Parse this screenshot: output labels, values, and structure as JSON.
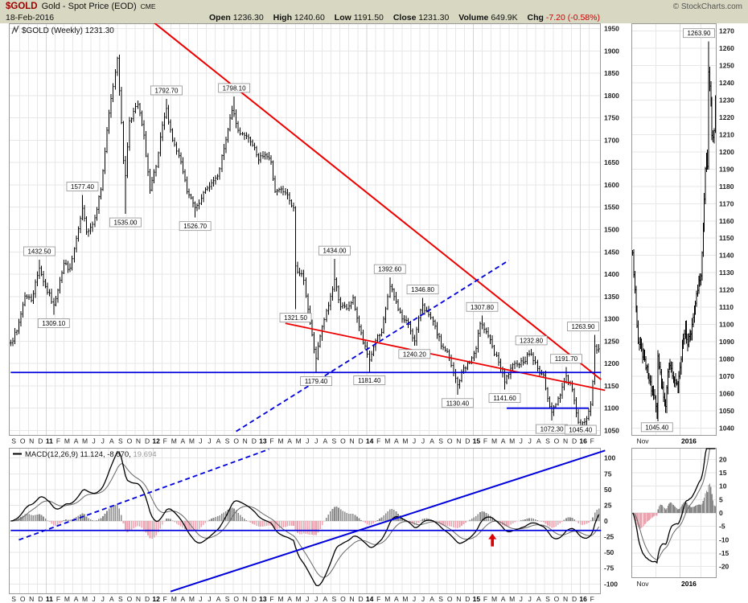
{
  "header": {
    "symbol": "$GOLD",
    "title": "Gold - Spot Price (EOD)",
    "exchange": "CME",
    "copyright": "© StockCharts.com",
    "date": "18-Feb-2016",
    "quote": {
      "open_label": "Open",
      "open": "1236.30",
      "high_label": "High",
      "high": "1240.60",
      "low_label": "Low",
      "low": "1191.50",
      "close_label": "Close",
      "close": "1231.30",
      "volume_label": "Volume",
      "volume": "649.9K",
      "chg_label": "Chg",
      "chg": "-7.20 (-0.58%)"
    }
  },
  "colors": {
    "header_bg": "#d8d8c2",
    "symbol": "#990000",
    "chg_negative": "#cc0000",
    "panel_border": "#999999",
    "grid": "#e7e7e7",
    "grid_major": "#d4d4d4",
    "axis_text": "#222222",
    "bar": "#000000",
    "trend_red": "#ee0000",
    "trend_blue": "#0000dd",
    "hist_pos": "#888888",
    "hist_neg": "#eba3af",
    "macd_line": "#000000",
    "signal_line": "#666666",
    "arrow_red": "#dd0000",
    "label_box_border": "#909090"
  },
  "chart_data": {
    "type": "ohlc",
    "symbol": "$GOLD",
    "main": {
      "title": "$GOLD (Weekly) 1231.30",
      "timeframe": "weekly",
      "weeks": 288,
      "ylim": [
        1040,
        1960
      ],
      "y_ticks": [
        1950,
        1900,
        1850,
        1800,
        1750,
        1700,
        1650,
        1600,
        1550,
        1500,
        1450,
        1400,
        1350,
        1300,
        1250,
        1200,
        1150,
        1100,
        1050
      ],
      "x_labels": [
        "S",
        "O",
        "N",
        "D",
        "11",
        "F",
        "M",
        "A",
        "M",
        "J",
        "J",
        "A",
        "S",
        "O",
        "N",
        "D",
        "12",
        "F",
        "M",
        "A",
        "M",
        "J",
        "J",
        "A",
        "S",
        "O",
        "N",
        "D",
        "13",
        "F",
        "M",
        "A",
        "M",
        "J",
        "J",
        "A",
        "S",
        "O",
        "N",
        "D",
        "14",
        "F",
        "M",
        "A",
        "M",
        "J",
        "J",
        "A",
        "S",
        "O",
        "N",
        "D",
        "15",
        "F",
        "M",
        "A",
        "M",
        "J",
        "J",
        "A",
        "S",
        "O",
        "N",
        "D",
        "16",
        "F"
      ],
      "close_keypoints": [
        [
          0,
          1248
        ],
        [
          3,
          1272
        ],
        [
          7,
          1352
        ],
        [
          10,
          1342
        ],
        [
          14,
          1415
        ],
        [
          17,
          1372
        ],
        [
          21,
          1330
        ],
        [
          24,
          1388
        ],
        [
          26,
          1424
        ],
        [
          29,
          1412
        ],
        [
          33,
          1500
        ],
        [
          35,
          1546
        ],
        [
          37,
          1496
        ],
        [
          40,
          1512
        ],
        [
          44,
          1590
        ],
        [
          48,
          1760
        ],
        [
          52,
          1885
        ],
        [
          53,
          1812
        ],
        [
          55,
          1655
        ],
        [
          56,
          1622
        ],
        [
          58,
          1744
        ],
        [
          62,
          1780
        ],
        [
          65,
          1710
        ],
        [
          68,
          1588
        ],
        [
          71,
          1640
        ],
        [
          74,
          1732
        ],
        [
          76,
          1770
        ],
        [
          79,
          1700
        ],
        [
          83,
          1650
        ],
        [
          86,
          1585
        ],
        [
          90,
          1550
        ],
        [
          93,
          1572
        ],
        [
          97,
          1598
        ],
        [
          101,
          1618
        ],
        [
          105,
          1700
        ],
        [
          108,
          1768
        ],
        [
          111,
          1722
        ],
        [
          114,
          1712
        ],
        [
          118,
          1688
        ],
        [
          121,
          1655
        ],
        [
          124,
          1668
        ],
        [
          127,
          1650
        ],
        [
          129,
          1585
        ],
        [
          132,
          1592
        ],
        [
          135,
          1578
        ],
        [
          138,
          1550
        ],
        [
          139,
          1420
        ],
        [
          141,
          1400
        ],
        [
          143,
          1388
        ],
        [
          146,
          1290
        ],
        [
          148,
          1232
        ],
        [
          149,
          1212
        ],
        [
          152,
          1282
        ],
        [
          155,
          1330
        ],
        [
          158,
          1388
        ],
        [
          161,
          1328
        ],
        [
          164,
          1322
        ],
        [
          167,
          1346
        ],
        [
          170,
          1282
        ],
        [
          172,
          1246
        ],
        [
          175,
          1208
        ],
        [
          178,
          1252
        ],
        [
          181,
          1268
        ],
        [
          184,
          1350
        ],
        [
          185,
          1372
        ],
        [
          188,
          1338
        ],
        [
          191,
          1300
        ],
        [
          194,
          1288
        ],
        [
          197,
          1250
        ],
        [
          200,
          1320
        ],
        [
          201,
          1332
        ],
        [
          204,
          1308
        ],
        [
          207,
          1282
        ],
        [
          210,
          1240
        ],
        [
          213,
          1226
        ],
        [
          216,
          1178
        ],
        [
          218,
          1152
        ],
        [
          221,
          1190
        ],
        [
          224,
          1202
        ],
        [
          227,
          1232
        ],
        [
          229,
          1290
        ],
        [
          230,
          1288
        ],
        [
          233,
          1262
        ],
        [
          236,
          1220
        ],
        [
          238,
          1204
        ],
        [
          241,
          1158
        ],
        [
          244,
          1188
        ],
        [
          247,
          1200
        ],
        [
          250,
          1204
        ],
        [
          253,
          1222
        ],
        [
          254,
          1220
        ],
        [
          257,
          1188
        ],
        [
          260,
          1172
        ],
        [
          263,
          1104
        ],
        [
          264,
          1090
        ],
        [
          267,
          1122
        ],
        [
          270,
          1160
        ],
        [
          271,
          1172
        ],
        [
          274,
          1142
        ],
        [
          276,
          1088
        ],
        [
          278,
          1062
        ],
        [
          280,
          1068
        ],
        [
          282,
          1092
        ],
        [
          283,
          1108
        ],
        [
          284,
          1160
        ],
        [
          285,
          1240
        ],
        [
          286,
          1232
        ],
        [
          287,
          1231
        ]
      ],
      "price_labels": [
        {
          "week": 14,
          "price": 1432.5,
          "text": "1432.50",
          "kind": "high"
        },
        {
          "week": 21,
          "price": 1309.1,
          "text": "1309.10",
          "kind": "low"
        },
        {
          "week": 35,
          "price": 1577.4,
          "text": "1577.40",
          "kind": "high"
        },
        {
          "week": 56,
          "price": 1535.0,
          "text": "1535.00",
          "kind": "low"
        },
        {
          "week": 76,
          "price": 1792.7,
          "text": "1792.70",
          "kind": "high"
        },
        {
          "week": 90,
          "price": 1526.7,
          "text": "1526.70",
          "kind": "low"
        },
        {
          "week": 109,
          "price": 1798.1,
          "text": "1798.10",
          "kind": "high"
        },
        {
          "week": 139,
          "price": 1321.5,
          "text": "1321.50",
          "kind": "low"
        },
        {
          "week": 149,
          "price": 1179.4,
          "text": "1179.40",
          "kind": "low"
        },
        {
          "week": 158,
          "price": 1434.0,
          "text": "1434.00",
          "kind": "high"
        },
        {
          "week": 175,
          "price": 1181.4,
          "text": "1181.40",
          "kind": "low"
        },
        {
          "week": 185,
          "price": 1392.6,
          "text": "1392.60",
          "kind": "high"
        },
        {
          "week": 197,
          "price": 1240.2,
          "text": "1240.20",
          "kind": "low"
        },
        {
          "week": 201,
          "price": 1346.8,
          "text": "1346.80",
          "kind": "high"
        },
        {
          "week": 218,
          "price": 1130.4,
          "text": "1130.40",
          "kind": "low"
        },
        {
          "week": 230,
          "price": 1307.8,
          "text": "1307.80",
          "kind": "high"
        },
        {
          "week": 241,
          "price": 1141.6,
          "text": "1141.60",
          "kind": "low"
        },
        {
          "week": 254,
          "price": 1232.8,
          "text": "1232.80",
          "kind": "high"
        },
        {
          "week": 264,
          "price": 1072.3,
          "text": "1072.30",
          "kind": "low"
        },
        {
          "week": 271,
          "price": 1191.7,
          "text": "1191.70",
          "kind": "high"
        },
        {
          "week": 278,
          "price": 1045.4,
          "text": "1045.40",
          "kind": "low"
        },
        {
          "week": 285,
          "price": 1263.9,
          "text": "1263.90",
          "kind": "high"
        }
      ],
      "trendlines": [
        {
          "name": "major-downtrend-line",
          "color": "red",
          "width": 2,
          "points": [
            [
              70,
              1963
            ],
            [
              288,
              1164
            ]
          ]
        },
        {
          "name": "minor-downtrend-line",
          "color": "red",
          "width": 1.8,
          "points": [
            [
              134,
              1290
            ],
            [
              290,
              1140
            ]
          ]
        },
        {
          "name": "rising-dashed-line",
          "color": "blue",
          "width": 1.8,
          "dash": "6,4",
          "points": [
            [
              110,
              1048
            ],
            [
              243,
              1431
            ]
          ]
        },
        {
          "name": "support-line-1180",
          "color": "blue",
          "width": 1.8,
          "points": [
            [
              0,
              1180
            ],
            [
              288,
              1180
            ]
          ]
        },
        {
          "name": "resistance-line-1100",
          "color": "blue",
          "width": 1.8,
          "points": [
            [
              242,
              1100
            ],
            [
              282,
              1100
            ]
          ]
        }
      ]
    },
    "macd": {
      "label": "MACD(12,26,9)",
      "values_text": "11.124, -8.570,",
      "hist_text": "19.694",
      "params": [
        12,
        26,
        9
      ],
      "ylim": [
        -115,
        115
      ],
      "y_ticks": [
        100,
        75,
        50,
        25,
        0,
        -25,
        -50,
        -75,
        -100
      ],
      "trendlines": [
        {
          "name": "macd-rising-solid-line",
          "color": "blue",
          "width": 2,
          "points": [
            [
              78,
              -112
            ],
            [
              290,
              112
            ]
          ]
        },
        {
          "name": "macd-rising-dashed-line",
          "color": "blue",
          "width": 1.8,
          "dash": "6,4",
          "points": [
            [
              4,
              -30
            ],
            [
              126,
              114
            ]
          ]
        },
        {
          "name": "macd-horizontal-line",
          "color": "blue",
          "width": 1.8,
          "points": [
            [
              0,
              -15
            ],
            [
              288,
              -15
            ]
          ]
        }
      ],
      "arrow": {
        "week": 235,
        "tip": -20
      }
    },
    "inset": {
      "timeframe": "daily",
      "days": 76,
      "ylim": [
        1036,
        1274
      ],
      "y_ticks": [
        1270,
        1260,
        1250,
        1240,
        1230,
        1220,
        1210,
        1200,
        1190,
        1180,
        1170,
        1160,
        1150,
        1140,
        1130,
        1120,
        1110,
        1100,
        1090,
        1080,
        1070,
        1060,
        1050,
        1040
      ],
      "x_labels": [
        {
          "text": "Nov",
          "day": 9,
          "bold": false
        },
        {
          "text": "2016",
          "day": 51,
          "bold": true
        }
      ],
      "month_grid_days": [
        21,
        43,
        62
      ],
      "close_keypoints": [
        [
          0,
          1142
        ],
        [
          2,
          1120
        ],
        [
          5,
          1090
        ],
        [
          8,
          1085
        ],
        [
          11,
          1080
        ],
        [
          14,
          1070
        ],
        [
          18,
          1061
        ],
        [
          21,
          1053
        ],
        [
          22,
          1046
        ],
        [
          23,
          1082
        ],
        [
          25,
          1072
        ],
        [
          28,
          1058
        ],
        [
          30,
          1052
        ],
        [
          32,
          1072
        ],
        [
          34,
          1076
        ],
        [
          36,
          1070
        ],
        [
          38,
          1068
        ],
        [
          41,
          1062
        ],
        [
          43,
          1075
        ],
        [
          46,
          1092
        ],
        [
          48,
          1098
        ],
        [
          50,
          1088
        ],
        [
          52,
          1094
        ],
        [
          54,
          1100
        ],
        [
          56,
          1108
        ],
        [
          58,
          1118
        ],
        [
          60,
          1126
        ],
        [
          62,
          1128
        ],
        [
          63,
          1142
        ],
        [
          64,
          1156
        ],
        [
          65,
          1172
        ],
        [
          66,
          1190
        ],
        [
          67,
          1198
        ],
        [
          68,
          1192
        ],
        [
          69,
          1246
        ],
        [
          70,
          1238
        ],
        [
          71,
          1228
        ],
        [
          72,
          1210
        ],
        [
          73,
          1208
        ],
        [
          74,
          1212
        ],
        [
          75,
          1231
        ]
      ],
      "price_labels": [
        {
          "day": 69,
          "price": 1263.9,
          "text": "1263.90",
          "kind": "high"
        },
        {
          "day": 22,
          "price": 1045.4,
          "text": "1045.40",
          "kind": "low"
        }
      ]
    },
    "inset_macd": {
      "ylim": [
        -24,
        24
      ],
      "y_ticks": [
        20,
        15,
        10,
        5,
        0,
        -5,
        -10,
        -15,
        -20
      ],
      "x_labels": [
        {
          "text": "Nov",
          "day": 9,
          "bold": false
        },
        {
          "text": "2016",
          "day": 51,
          "bold": true
        }
      ],
      "month_grid_days": [
        21,
        43,
        62
      ]
    }
  }
}
